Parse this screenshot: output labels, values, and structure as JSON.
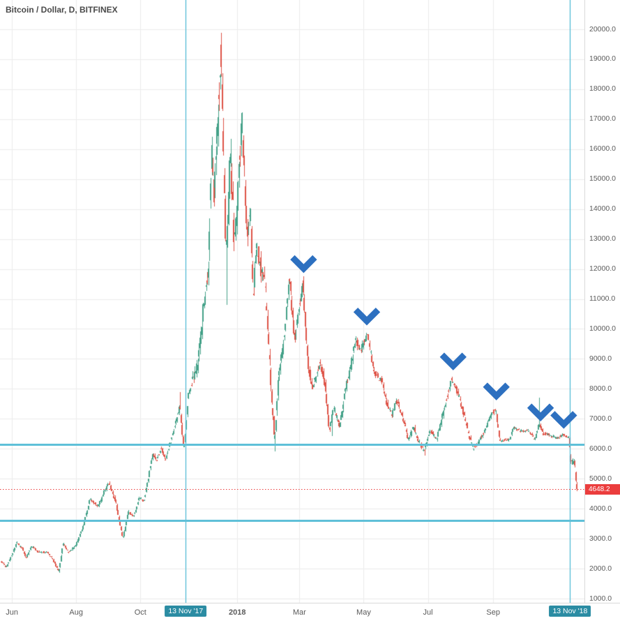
{
  "header": {
    "symbol_title": "Bitcoin / Dollar, D, BITFINEX"
  },
  "colors": {
    "background": "#ffffff",
    "up": "#43a188",
    "down": "#de5246",
    "grid": "#ececec",
    "axis_text": "#5a5a5a",
    "axis_border": "#d9d9d9",
    "support_line": "#5fc0d8",
    "event_tag_bg": "#2b8ca3",
    "last_price": "#eb3d3d",
    "arrow": "#2d70c0",
    "title_text": "#4a4a4a"
  },
  "price_axis": {
    "labels": [
      "20000.0",
      "19000.0",
      "18000.0",
      "17000.0",
      "16000.0",
      "15000.0",
      "14000.0",
      "13000.0",
      "12000.0",
      "11000.0",
      "10000.0",
      "9000.0",
      "8000.0",
      "7000.0",
      "6000.0",
      "5000.0",
      "4000.0",
      "3000.0",
      "2000.0",
      "1000.0"
    ],
    "last_price_label": "4648.2"
  },
  "time_axis": {
    "ticks": [
      {
        "label": "Jun",
        "date": "2017-06-01",
        "highlight": false,
        "bold": false
      },
      {
        "label": "Aug",
        "date": "2017-08-01",
        "highlight": false,
        "bold": false
      },
      {
        "label": "Oct",
        "date": "2017-10-01",
        "highlight": false,
        "bold": false
      },
      {
        "label": "13 Nov '17",
        "date": "2017-11-13",
        "highlight": true,
        "bold": false
      },
      {
        "label": "2018",
        "date": "2018-01-01",
        "highlight": false,
        "bold": true
      },
      {
        "label": "Mar",
        "date": "2018-03-01",
        "highlight": false,
        "bold": false
      },
      {
        "label": "May",
        "date": "2018-05-01",
        "highlight": false,
        "bold": false
      },
      {
        "label": "Jul",
        "date": "2018-07-01",
        "highlight": false,
        "bold": false
      },
      {
        "label": "Sep",
        "date": "2018-09-01",
        "highlight": false,
        "bold": false
      },
      {
        "label": "13 Nov '18",
        "date": "2018-11-13",
        "highlight": true,
        "bold": false
      }
    ]
  },
  "chart_data": {
    "type": "candlestick",
    "title": "Bitcoin / Dollar, D, BITFINEX",
    "symbol": "Bitcoin / Dollar",
    "interval": "D",
    "exchange": "BITFINEX",
    "ylim": [
      1000,
      20000
    ],
    "y_step": 1000,
    "start_date": "2017-05-22",
    "end_date": "2018-11-20",
    "last_price": 4648.2,
    "support_lines": [
      6150,
      3600
    ],
    "event_vlines": [
      "2017-11-13",
      "2018-11-13"
    ],
    "down_arrows": [
      [
        "2018-03-05",
        12200
      ],
      [
        "2018-05-04",
        10450
      ],
      [
        "2018-07-25",
        8950
      ],
      [
        "2018-09-04",
        7950
      ],
      [
        "2018-10-16",
        7250
      ],
      [
        "2018-11-07",
        7000
      ]
    ],
    "anchors": [
      [
        "2017-05-22",
        2250
      ],
      [
        "2017-05-27",
        2050
      ],
      [
        "2017-06-06",
        2870
      ],
      [
        "2017-06-12",
        2650
      ],
      [
        "2017-06-15",
        2350
      ],
      [
        "2017-06-20",
        2750
      ],
      [
        "2017-06-27",
        2550
      ],
      [
        "2017-07-05",
        2550
      ],
      [
        "2017-07-10",
        2350
      ],
      [
        "2017-07-16",
        1900
      ],
      [
        "2017-07-20",
        2850
      ],
      [
        "2017-07-25",
        2550
      ],
      [
        "2017-08-01",
        2750
      ],
      [
        "2017-08-08",
        3400
      ],
      [
        "2017-08-15",
        4350
      ],
      [
        "2017-08-19",
        4150
      ],
      [
        "2017-08-23",
        4100
      ],
      [
        "2017-09-01",
        4900
      ],
      [
        "2017-09-08",
        4250
      ],
      [
        "2017-09-15",
        3000
      ],
      [
        "2017-09-20",
        3900
      ],
      [
        "2017-09-25",
        3750
      ],
      [
        "2017-10-01",
        4400
      ],
      [
        "2017-10-05",
        4250
      ],
      [
        "2017-10-13",
        5800
      ],
      [
        "2017-10-17",
        5600
      ],
      [
        "2017-10-21",
        6050
      ],
      [
        "2017-10-25",
        5650
      ],
      [
        "2017-11-01",
        6450
      ],
      [
        "2017-11-08",
        7450
      ],
      [
        "2017-11-12",
        5900
      ],
      [
        "2017-11-16",
        7850
      ],
      [
        "2017-11-25",
        8750
      ],
      [
        "2017-12-01",
        10900
      ],
      [
        "2017-12-05",
        11650
      ],
      [
        "2017-12-08",
        16200
      ],
      [
        "2017-12-10",
        14400
      ],
      [
        "2017-12-17",
        19500
      ],
      [
        "2017-12-22",
        12500
      ],
      [
        "2017-12-26",
        15800
      ],
      [
        "2017-12-30",
        12800
      ],
      [
        "2018-01-06",
        17100
      ],
      [
        "2018-01-11",
        13200
      ],
      [
        "2018-01-14",
        14100
      ],
      [
        "2018-01-17",
        11100
      ],
      [
        "2018-01-20",
        12800
      ],
      [
        "2018-01-28",
        11400
      ],
      [
        "2018-02-01",
        9100
      ],
      [
        "2018-02-06",
        6300
      ],
      [
        "2018-02-10",
        8600
      ],
      [
        "2018-02-14",
        9400
      ],
      [
        "2018-02-20",
        11700
      ],
      [
        "2018-02-25",
        9650
      ],
      [
        "2018-03-05",
        11550
      ],
      [
        "2018-03-10",
        8800
      ],
      [
        "2018-03-14",
        8000
      ],
      [
        "2018-03-21",
        8900
      ],
      [
        "2018-03-26",
        8100
      ],
      [
        "2018-03-30",
        6600
      ],
      [
        "2018-04-03",
        7400
      ],
      [
        "2018-04-09",
        6750
      ],
      [
        "2018-04-14",
        8000
      ],
      [
        "2018-04-20",
        8850
      ],
      [
        "2018-04-24",
        9600
      ],
      [
        "2018-04-29",
        9300
      ],
      [
        "2018-05-05",
        9850
      ],
      [
        "2018-05-12",
        8450
      ],
      [
        "2018-05-19",
        8250
      ],
      [
        "2018-05-23",
        7550
      ],
      [
        "2018-05-28",
        7150
      ],
      [
        "2018-06-02",
        7600
      ],
      [
        "2018-06-10",
        6800
      ],
      [
        "2018-06-13",
        6300
      ],
      [
        "2018-06-18",
        6750
      ],
      [
        "2018-06-24",
        6150
      ],
      [
        "2018-06-28",
        5900
      ],
      [
        "2018-07-03",
        6600
      ],
      [
        "2018-07-10",
        6350
      ],
      [
        "2018-07-17",
        7350
      ],
      [
        "2018-07-24",
        8350
      ],
      [
        "2018-07-31",
        7750
      ],
      [
        "2018-08-06",
        7000
      ],
      [
        "2018-08-11",
        6300
      ],
      [
        "2018-08-14",
        6000
      ],
      [
        "2018-08-22",
        6400
      ],
      [
        "2018-08-28",
        7000
      ],
      [
        "2018-09-04",
        7300
      ],
      [
        "2018-09-08",
        6250
      ],
      [
        "2018-09-12",
        6300
      ],
      [
        "2018-09-17",
        6300
      ],
      [
        "2018-09-21",
        6700
      ],
      [
        "2018-09-28",
        6600
      ],
      [
        "2018-10-05",
        6600
      ],
      [
        "2018-10-11",
        6300
      ],
      [
        "2018-10-15",
        6850
      ],
      [
        "2018-10-19",
        6500
      ],
      [
        "2018-10-24",
        6480
      ],
      [
        "2018-10-31",
        6350
      ],
      [
        "2018-11-04",
        6400
      ],
      [
        "2018-11-07",
        6500
      ],
      [
        "2018-11-10",
        6400
      ],
      [
        "2018-11-13",
        6350
      ],
      [
        "2018-11-14",
        5600
      ],
      [
        "2018-11-16",
        5550
      ],
      [
        "2018-11-18",
        5600
      ],
      [
        "2018-11-19",
        5000
      ],
      [
        "2018-11-20",
        4648.2
      ]
    ],
    "wick_highs": [
      [
        "2017-11-08",
        7900
      ],
      [
        "2017-12-17",
        19891
      ],
      [
        "2018-10-15",
        7700
      ]
    ],
    "wick_lows": [
      [
        "2017-07-16",
        1850
      ],
      [
        "2017-12-22",
        10800
      ],
      [
        "2018-02-06",
        5920
      ],
      [
        "2018-04-01",
        6430
      ],
      [
        "2018-06-28",
        5780
      ],
      [
        "2018-11-19",
        4900
      ]
    ]
  }
}
